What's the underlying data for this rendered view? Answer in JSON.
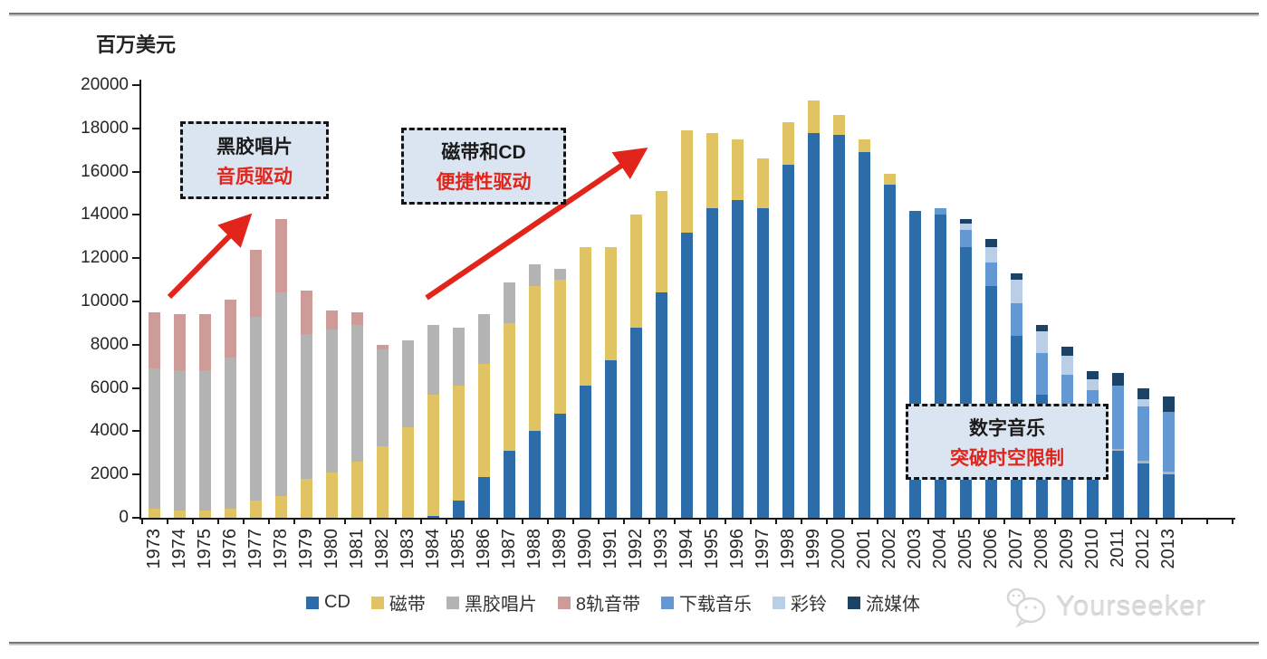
{
  "unit_label": "百万美元",
  "chart_data": {
    "type": "bar",
    "subtype": "stacked-vertical",
    "title": "",
    "ylabel": "百万美元",
    "xlabel": "",
    "ylim": [
      0,
      20000
    ],
    "y_tick_step": 2000,
    "grid": false,
    "legend_position": "bottom",
    "years": [
      1973,
      1974,
      1975,
      1976,
      1977,
      1978,
      1979,
      1980,
      1981,
      1982,
      1983,
      1984,
      1985,
      1986,
      1987,
      1988,
      1989,
      1990,
      1991,
      1992,
      1993,
      1994,
      1995,
      1996,
      1997,
      1998,
      1999,
      2000,
      2001,
      2002,
      2003,
      2004,
      2005,
      2006,
      2007,
      2008,
      2009,
      2010,
      2011,
      2012,
      2013
    ],
    "series": [
      {
        "name": "CD",
        "color": "#2B6CA9",
        "values": [
          0,
          0,
          0,
          0,
          0,
          0,
          0,
          0,
          0,
          0,
          0,
          100,
          800,
          1900,
          3100,
          4000,
          4800,
          6100,
          7300,
          8800,
          10400,
          13200,
          14300,
          14700,
          14300,
          16300,
          17800,
          17700,
          16900,
          15400,
          14200,
          14000,
          12500,
          10700,
          8400,
          5700,
          4500,
          3600,
          3100,
          2500,
          2000
        ]
      },
      {
        "name": "磁带",
        "color": "#E0C363",
        "values": [
          400,
          350,
          350,
          400,
          800,
          1000,
          1800,
          2100,
          2600,
          3300,
          4200,
          5600,
          5300,
          5200,
          5900,
          6700,
          6200,
          6400,
          5200,
          5200,
          4700,
          4700,
          3500,
          2800,
          2300,
          2000,
          1500,
          900,
          600,
          500,
          0,
          0,
          0,
          0,
          0,
          0,
          0,
          0,
          0,
          0,
          0
        ]
      },
      {
        "name": "黑胶唱片",
        "color": "#B3B3B3",
        "values": [
          6500,
          6450,
          6450,
          7000,
          8500,
          9400,
          6700,
          6600,
          6300,
          4500,
          4000,
          3200,
          2700,
          2300,
          1900,
          1000,
          500,
          0,
          0,
          0,
          0,
          0,
          0,
          0,
          0,
          0,
          0,
          0,
          0,
          0,
          0,
          0,
          0,
          0,
          0,
          0,
          0,
          0,
          100,
          150,
          150
        ]
      },
      {
        "name": "8轨音带",
        "color": "#CD9C99",
        "values": [
          2600,
          2600,
          2600,
          2700,
          3100,
          3400,
          2000,
          900,
          600,
          200,
          0,
          0,
          0,
          0,
          0,
          0,
          0,
          0,
          0,
          0,
          0,
          0,
          0,
          0,
          0,
          0,
          0,
          0,
          0,
          0,
          0,
          0,
          0,
          0,
          0,
          0,
          0,
          0,
          0,
          0,
          0
        ]
      },
      {
        "name": "下载音乐",
        "color": "#6398D2",
        "values": [
          0,
          0,
          0,
          0,
          0,
          0,
          0,
          0,
          0,
          0,
          0,
          0,
          0,
          0,
          0,
          0,
          0,
          0,
          0,
          0,
          0,
          0,
          0,
          0,
          0,
          0,
          0,
          0,
          0,
          0,
          0,
          300,
          800,
          1100,
          1500,
          1900,
          2100,
          2300,
          2900,
          2500,
          2750
        ]
      },
      {
        "name": "彩铃",
        "color": "#BBCEE7",
        "values": [
          0,
          0,
          0,
          0,
          0,
          0,
          0,
          0,
          0,
          0,
          0,
          0,
          0,
          0,
          0,
          0,
          0,
          0,
          0,
          0,
          0,
          0,
          0,
          0,
          0,
          0,
          0,
          0,
          0,
          0,
          0,
          0,
          300,
          700,
          1100,
          1000,
          900,
          500,
          0,
          350,
          0
        ]
      },
      {
        "name": "流媒体",
        "color": "#1C4266",
        "values": [
          0,
          0,
          0,
          0,
          0,
          0,
          0,
          0,
          0,
          0,
          0,
          0,
          0,
          0,
          0,
          0,
          0,
          0,
          0,
          0,
          0,
          0,
          0,
          0,
          0,
          0,
          0,
          0,
          0,
          0,
          0,
          0,
          200,
          400,
          300,
          300,
          400,
          400,
          600,
          500,
          700
        ]
      }
    ]
  },
  "annotations": [
    {
      "line1": "黑胶唱片",
      "line2": "音质驱动"
    },
    {
      "line1": "磁带和CD",
      "line2": "便捷性驱动"
    },
    {
      "line1": "数字音乐",
      "line2": "突破时空限制"
    }
  ],
  "watermark": {
    "text": "Yourseeker"
  },
  "colors": {
    "annotation_red": "#E1251B",
    "arrow_red": "#E1251B",
    "box_fill": "#DBE5F1",
    "box_border": "#141414"
  }
}
